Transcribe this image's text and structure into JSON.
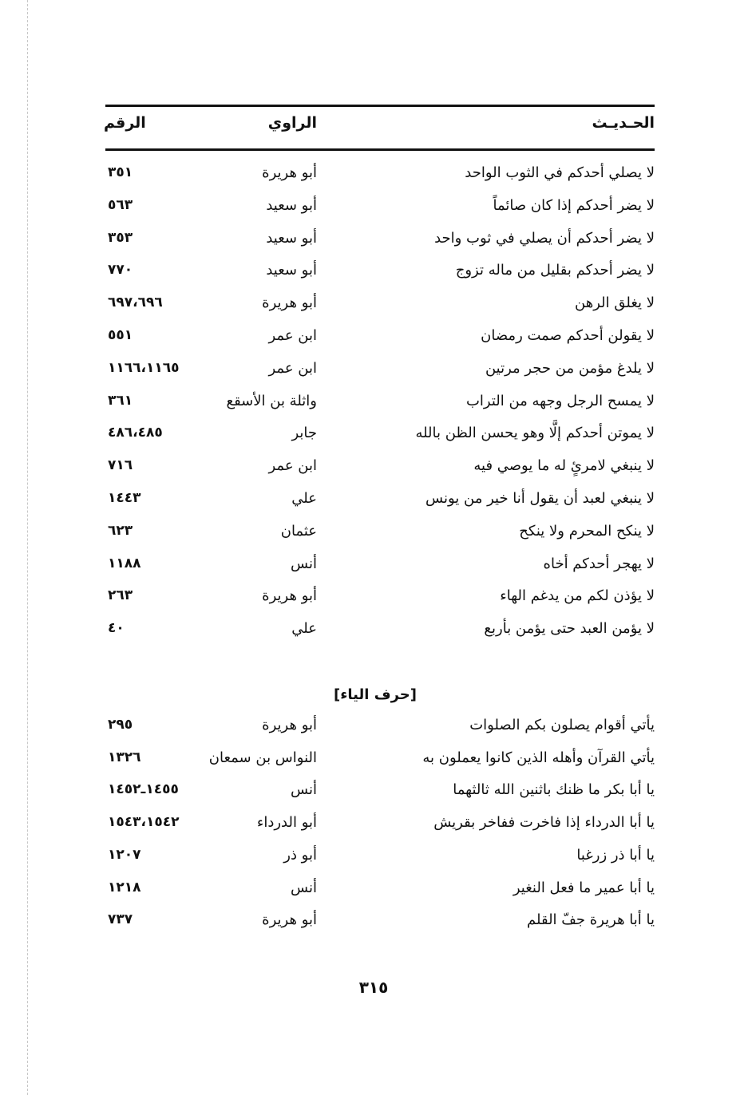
{
  "header": {
    "hadith": "الحـديـث",
    "narrator": "الراوي",
    "number": "الرقم"
  },
  "rows": [
    {
      "hadith": "لا يصلي أحدكم في الثوب الواحد",
      "narrator": "أبو هريرة",
      "number": "٣٥١"
    },
    {
      "hadith": "لا يضر أحدكم إذا كان صائماً",
      "narrator": "أبو سعيد",
      "number": "٥٦٣"
    },
    {
      "hadith": "لا يضر أحدكم أن يصلي في ثوب واحد",
      "narrator": "أبو سعيد",
      "number": "٣٥٣"
    },
    {
      "hadith": "لا يضر أحدكم بقليل من ماله تزوج",
      "narrator": "أبو سعيد",
      "number": "٧٧٠"
    },
    {
      "hadith": "لا يغلق الرهن",
      "narrator": "أبو هريرة",
      "number": "٦٩٧،٦٩٦"
    },
    {
      "hadith": "لا يقولن أحدكم صمت رمضان",
      "narrator": "ابن عمر",
      "number": "٥٥١"
    },
    {
      "hadith": "لا يلدغ مؤمن من حجر مرتين",
      "narrator": "ابن عمر",
      "number": "١١٦٦،١١٦٥"
    },
    {
      "hadith": "لا يمسح الرجل وجهه من التراب",
      "narrator": "واثلة بن الأسقع",
      "number": "٣٦١"
    },
    {
      "hadith": "لا يموتن أحدكم إلَّا وهو يحسن الظن بالله",
      "narrator": "جابر",
      "number": "٤٨٦،٤٨٥"
    },
    {
      "hadith": "لا ينبغي لامرئٍ له ما يوصي فيه",
      "narrator": "ابن عمر",
      "number": "٧١٦"
    },
    {
      "hadith": "لا ينبغي لعبد أن يقول أنا خير من يونس",
      "narrator": "علي",
      "number": "١٤٤٣"
    },
    {
      "hadith": "لا ينكح المحرم ولا ينكح",
      "narrator": "عثمان",
      "number": "٦٢٣"
    },
    {
      "hadith": "لا يهجر أحدكم أخاه",
      "narrator": "أنس",
      "number": "١١٨٨"
    },
    {
      "hadith": "لا يؤذن لكم من يدغم الهاء",
      "narrator": "أبو هريرة",
      "number": "٢٦٣"
    },
    {
      "hadith": "لا يؤمن العبد حتى يؤمن بأربع",
      "narrator": "علي",
      "number": "٤٠"
    }
  ],
  "section": {
    "title": "[حرف الياء]",
    "rows": [
      {
        "hadith": "يأتي أقوام يصلون بكم الصلوات",
        "narrator": "أبو هريرة",
        "number": "٢٩٥"
      },
      {
        "hadith": "يأتي القرآن وأهله الذين كانوا يعملون به",
        "narrator": "النواس بن سمعان",
        "number": "١٣٢٦"
      },
      {
        "hadith": "يا أبا بكر ما ظنك باثنين الله ثالثهما",
        "narrator": "أنس",
        "number": "١٤٥٥ـ١٤٥٢"
      },
      {
        "hadith": "يا أبا الدرداء إذا فاخرت ففاخر بقريش",
        "narrator": "أبو الدرداء",
        "number": "١٥٤٣،١٥٤٢"
      },
      {
        "hadith": "يا أبا ذر زرغبا",
        "narrator": "أبو ذر",
        "number": "١٢٠٧"
      },
      {
        "hadith": "يا أبا عمير ما فعل النغير",
        "narrator": "أنس",
        "number": "١٢١٨"
      },
      {
        "hadith": "يا أبا هريرة جفّ القلم",
        "narrator": "أبو هريرة",
        "number": "٧٣٧"
      }
    ]
  },
  "page_number": "٣١٥"
}
